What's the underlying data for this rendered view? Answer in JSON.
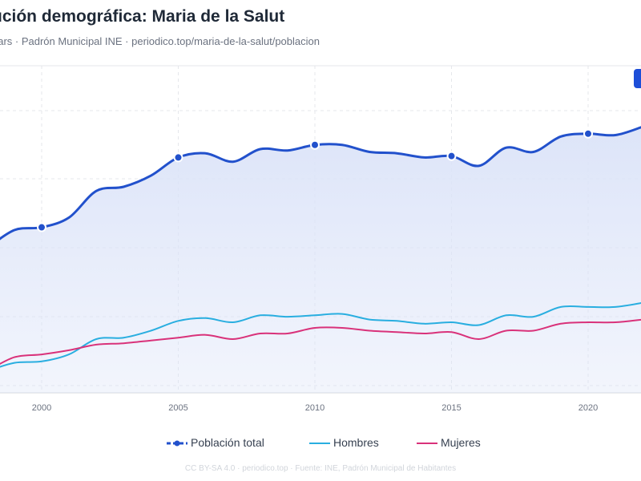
{
  "header": {
    "title": "ución demográfica: Maria de la Salut",
    "subtitle": "ears · Padrón Municipal INE · periodico.top/maria-de-la-salut/poblacion"
  },
  "footer": "CC BY-SA 4.0 · periodico.top · Fuente: INE, Padrón Municipal de Habitantes",
  "colors": {
    "total": "#2251cc",
    "hombres": "#29aee0",
    "mujeres": "#d9327a",
    "area": "#dbe3f8"
  },
  "chart_data": {
    "type": "line",
    "x_ticks": [
      2000,
      2005,
      2010,
      2015,
      2020
    ],
    "xlim": [
      1998.5,
      2022
    ],
    "ylim": [
      0,
      1000
    ],
    "x": [
      1998,
      1999,
      2000,
      2001,
      2002,
      2003,
      2004,
      2005,
      2006,
      2007,
      2008,
      2009,
      2010,
      2011,
      2012,
      2013,
      2014,
      2015,
      2016,
      2017,
      2018,
      2019,
      2020,
      2021,
      2022
    ],
    "series": [
      {
        "name": "Población total",
        "values": [
          460,
          525,
          535,
          570,
          665,
          680,
          720,
          785,
          800,
          770,
          815,
          810,
          830,
          830,
          805,
          800,
          785,
          790,
          755,
          820,
          805,
          860,
          870,
          865,
          895
        ],
        "markers": [
          2000,
          2005,
          2010,
          2015,
          2020
        ]
      },
      {
        "name": "Hombres",
        "values": [
          20,
          50,
          55,
          80,
          135,
          140,
          165,
          200,
          210,
          195,
          220,
          215,
          220,
          225,
          205,
          200,
          190,
          195,
          185,
          220,
          215,
          250,
          250,
          250,
          265
        ]
      },
      {
        "name": "Mujeres",
        "values": [
          20,
          70,
          80,
          95,
          115,
          120,
          130,
          140,
          150,
          135,
          155,
          155,
          175,
          175,
          165,
          160,
          155,
          160,
          135,
          165,
          165,
          190,
          195,
          195,
          205
        ]
      }
    ]
  }
}
